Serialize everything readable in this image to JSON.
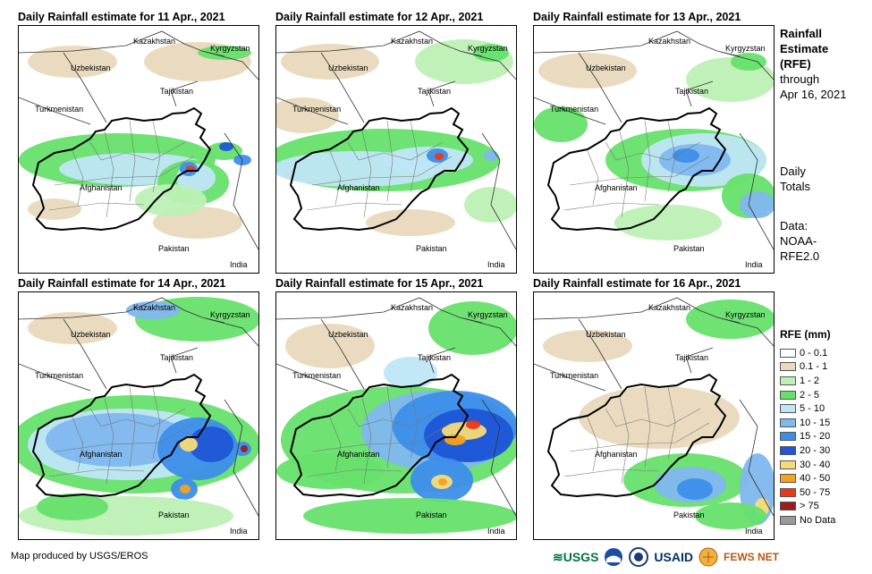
{
  "panels": [
    {
      "title": "Daily Rainfall estimate for 11 Apr., 2021"
    },
    {
      "title": "Daily Rainfall estimate for 12 Apr., 2021"
    },
    {
      "title": "Daily Rainfall estimate for 13 Apr., 2021"
    },
    {
      "title": "Daily Rainfall estimate for 14 Apr., 2021"
    },
    {
      "title": "Daily Rainfall estimate for 15 Apr., 2021"
    },
    {
      "title": "Daily Rainfall estimate for 16 Apr., 2021"
    }
  ],
  "places": {
    "kazakhstan": "Kazakhstan",
    "kyrgyzstan": "Kyrgyzstan",
    "uzbekistan": "Uzbekistan",
    "tajikistan": "Tajikistan",
    "turkmenistan": "Turkmenistan",
    "afghanistan": "Afghanistan",
    "pakistan": "Pakistan",
    "india": "India"
  },
  "side": {
    "title_line1": "Rainfall",
    "title_line2": "Estimate",
    "title_line3": "(RFE)",
    "through_line1": "through",
    "through_line2": "Apr 16, 2021",
    "daily_line1": "Daily",
    "daily_line2": "Totals",
    "data_line1": "Data:",
    "data_line2": "NOAA-",
    "data_line3": "RFE2.0"
  },
  "legend": {
    "title": "RFE (mm)",
    "items": [
      {
        "label": "0 - 0.1",
        "color": "#ffffff"
      },
      {
        "label": "0.1 - 1",
        "color": "#e9d9bd"
      },
      {
        "label": "1 - 2",
        "color": "#bdf0b4"
      },
      {
        "label": "2 - 5",
        "color": "#66e06a"
      },
      {
        "label": "5 - 10",
        "color": "#bfe6f7"
      },
      {
        "label": "10 - 15",
        "color": "#7fb7ef"
      },
      {
        "label": "15 - 20",
        "color": "#3d8eea"
      },
      {
        "label": "20 - 30",
        "color": "#1f56d6"
      },
      {
        "label": "30 - 40",
        "color": "#f5dc78"
      },
      {
        "label": "40 - 50",
        "color": "#f5a21d"
      },
      {
        "label": "50 - 75",
        "color": "#e73a1d"
      },
      {
        "label": "> 75",
        "color": "#9b1d1d"
      },
      {
        "label": "No Data",
        "color": "#9a9a9a"
      }
    ]
  },
  "credit": "Map produced by USGS/EROS",
  "logos": {
    "usgs": "USGS",
    "usaid": "USAID",
    "fewsnet": "FEWS NET"
  }
}
